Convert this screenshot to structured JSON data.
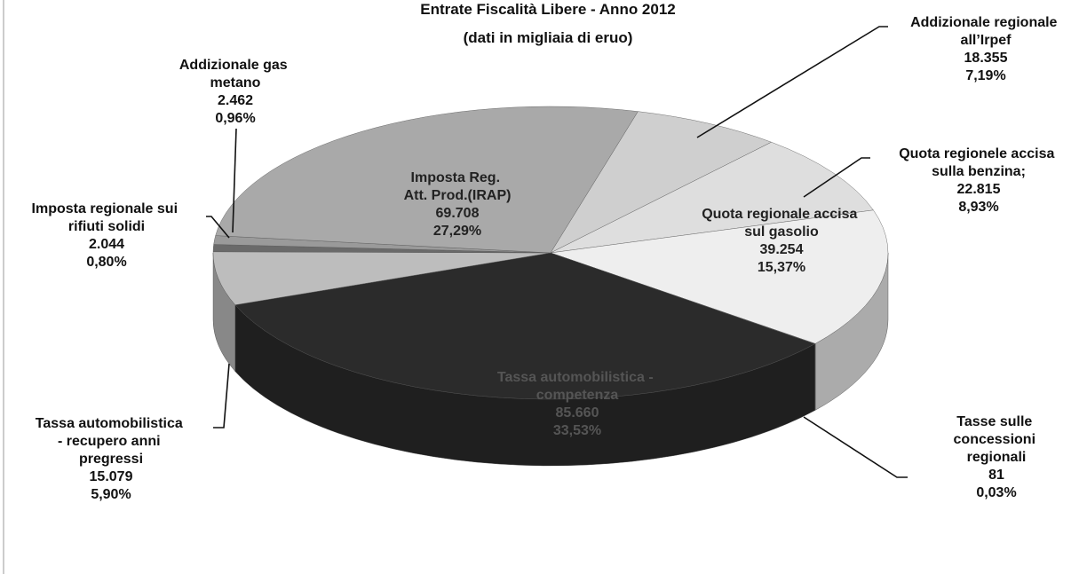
{
  "chart_data": {
    "type": "pie3d",
    "title": "Entrate Fiscalità Libere - Anno 2012",
    "subtitle": "(dati in migliaia di eruo)",
    "categories": [
      "Addizionale regionale all’Irpef",
      "Quota regionele accisa sulla benzina;",
      "Quota regionale accisa sul gasolio",
      "Tasse sulle concessioni regionali",
      "Tassa automobilistica - competenza",
      "Tassa automobilistica - recupero anni pregressi",
      "Imposta regionale sui rifiuti solidi",
      "Addizionale gas metano",
      "Imposta Reg. Att. Prod.(IRAP)"
    ],
    "values": [
      18355,
      22815,
      39254,
      81,
      85660,
      15079,
      2044,
      2462,
      69708
    ],
    "value_labels": [
      "18.355",
      "22.815",
      "39.254",
      "81",
      "85.660",
      "15.079",
      "2.044",
      "2.462",
      "69.708"
    ],
    "percent_labels": [
      "7,19%",
      "8,93%",
      "15,37%",
      "0,03%",
      "33,53%",
      "5,90%",
      "0,80%",
      "0,96%",
      "27,29%"
    ],
    "colors": [
      "#cfcfcf",
      "#dedede",
      "#eeeeee",
      "#8a8a8a",
      "#2b2b2b",
      "#bdbdbd",
      "#6a6a6a",
      "#9a9a9a",
      "#a9a9a9"
    ]
  }
}
